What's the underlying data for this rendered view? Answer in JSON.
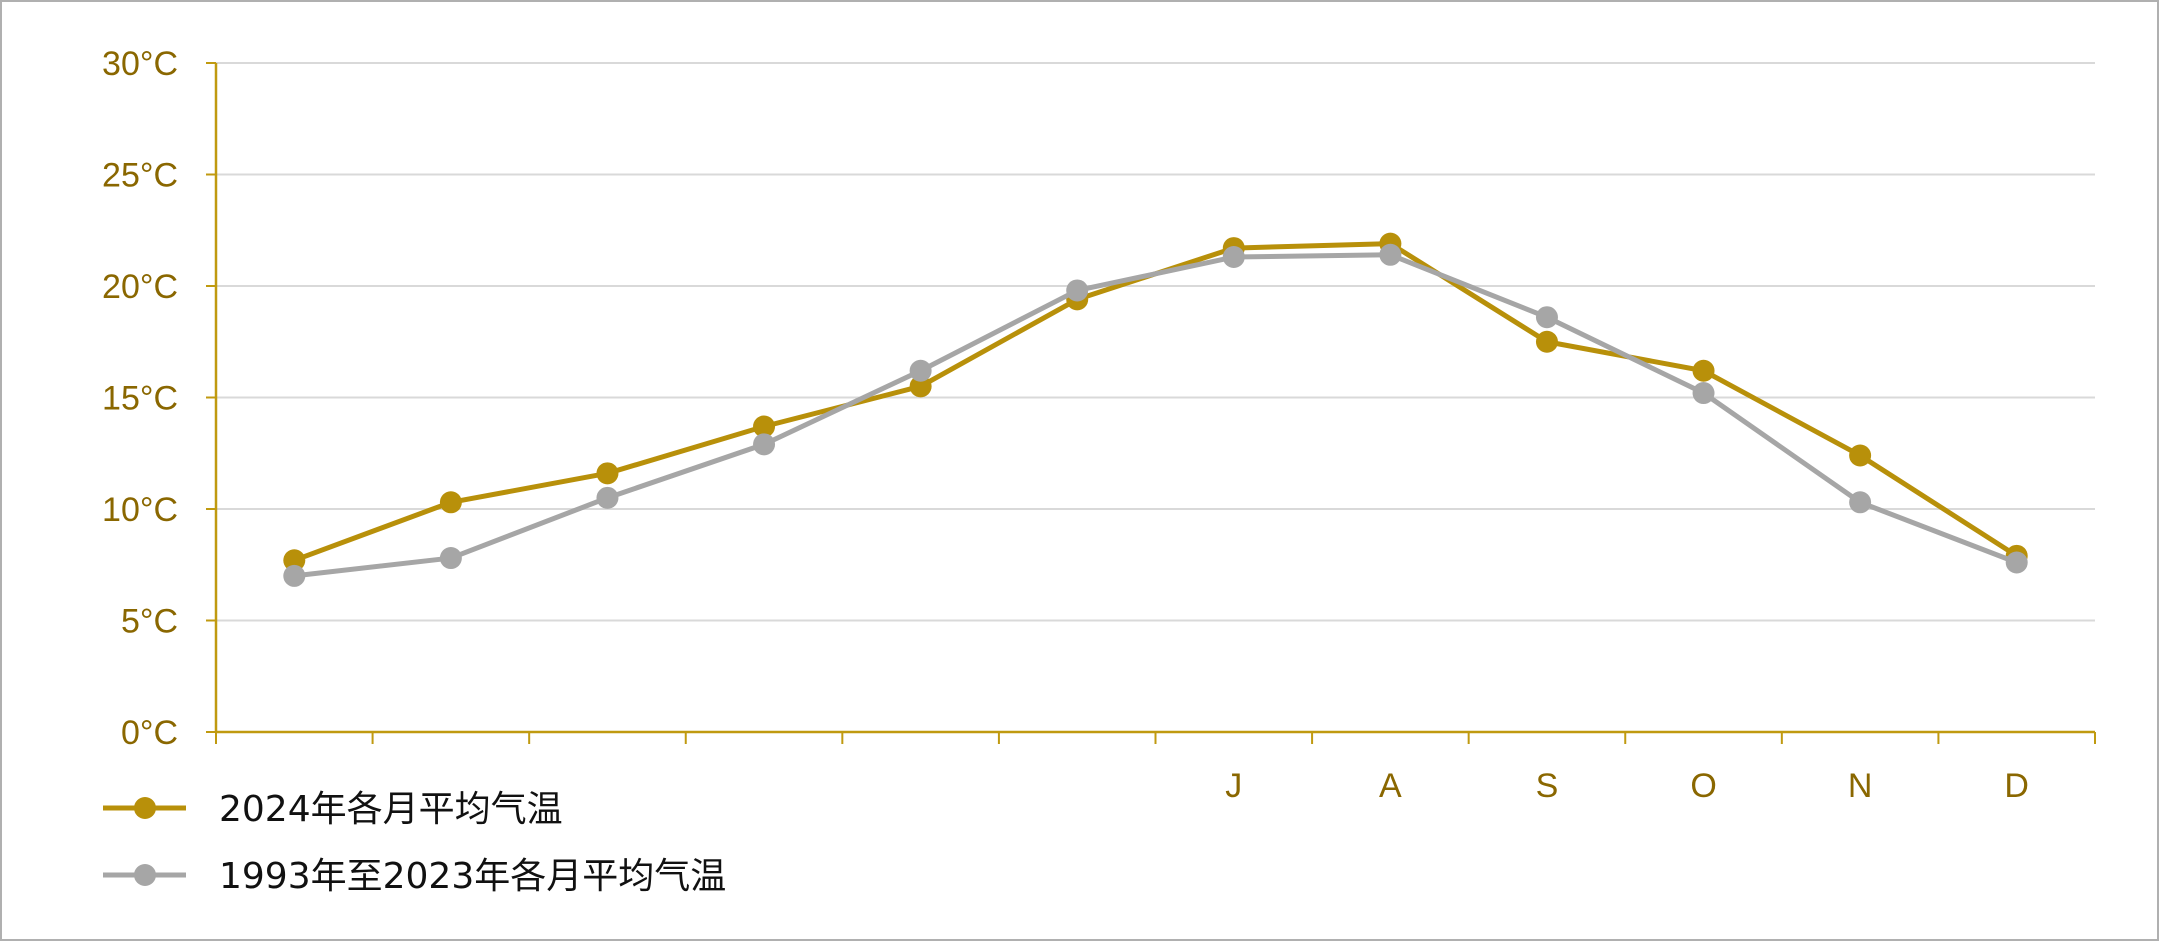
{
  "chart_data": {
    "type": "line",
    "categories": [
      "",
      "",
      "",
      "",
      "",
      "",
      "J",
      "A",
      "S",
      "O",
      "N",
      "D"
    ],
    "ylim": [
      0,
      30
    ],
    "yticks": [
      0,
      5,
      10,
      15,
      20,
      25,
      30
    ],
    "ytick_labels": [
      "0°C",
      "5°C",
      "10°C",
      "15°C",
      "20°C",
      "25°C",
      "30°C"
    ],
    "grid": true,
    "legend_position": "bottom-left",
    "series": [
      {
        "name": "2024年各月平均气温",
        "color": "#b8900a",
        "values": [
          7.7,
          10.3,
          11.6,
          13.7,
          15.5,
          19.4,
          21.7,
          21.9,
          17.5,
          16.2,
          12.4,
          7.9
        ]
      },
      {
        "name": "1993年至2023年各月平均气温",
        "color": "#a6a6a6",
        "values": [
          7.0,
          7.8,
          10.5,
          12.9,
          16.2,
          19.8,
          21.3,
          21.4,
          18.6,
          15.2,
          10.3,
          7.6
        ]
      }
    ]
  },
  "colors": {
    "axis": "#c09a10",
    "grid": "#d9d9d9",
    "tick_text": "#8a6700"
  }
}
